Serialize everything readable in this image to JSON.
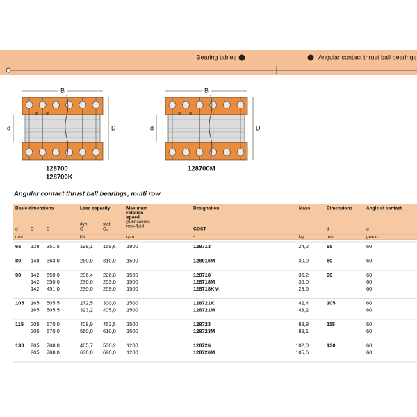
{
  "header": {
    "nav": [
      "Bearing tables",
      "Angular contact thrust ball bearings"
    ]
  },
  "figures": [
    {
      "labels": {
        "B": "B",
        "d": "d",
        "D": "D",
        "alpha": "α"
      },
      "designations": [
        "128700",
        "128700K"
      ]
    },
    {
      "labels": {
        "B": "B",
        "d": "d",
        "D": "D",
        "alpha": "α"
      },
      "designations": [
        "128700M"
      ]
    }
  ],
  "table": {
    "title": "Angular contact thrust ball bearings, multi row",
    "headers": {
      "basic": "Basic dimensions",
      "load": "Load capacity",
      "speed": [
        "Maximum",
        "rotation",
        "speed",
        "(lubrication)",
        "non-fluid"
      ],
      "designation": "Designation",
      "mass": "Mass",
      "dimensions": "Dimensions",
      "angle": "Angle of contact"
    },
    "sub": {
      "dyn": "dyn.",
      "dyn_symbol": "C",
      "stat": "stat.",
      "stat_symbol": "C₀"
    },
    "columns": {
      "d": "d",
      "D": "D",
      "B": "B",
      "gost": "GOST",
      "dim_d": "d",
      "alpha": "α"
    },
    "units": {
      "dims": "mm",
      "load": "kN",
      "speed": "rpm",
      "designation": "-",
      "mass": "kg",
      "dim": "mm",
      "angle": "grado"
    },
    "groups": [
      {
        "d": "65",
        "dim": "65",
        "rows": [
          [
            "128",
            "351,5",
            "199,1",
            "169,6",
            "1800",
            "128713",
            "24,2",
            "60"
          ]
        ]
      },
      {
        "d": "80",
        "dim": "80",
        "rows": [
          [
            "148",
            "363,0",
            "260,0",
            "310,0",
            "1500",
            "128916M",
            "30,0",
            "60"
          ]
        ]
      },
      {
        "d": "90",
        "dim": "90",
        "rows": [
          [
            "142",
            "550,0",
            "206,4",
            "226,8",
            "1500",
            "128718",
            "35,2",
            "60"
          ],
          [
            "142",
            "550,0",
            "230,0",
            "253,0",
            "1500",
            "128718M",
            "35,0",
            "60"
          ],
          [
            "142",
            "451,0",
            "230,0",
            "269,0",
            "1500",
            "128718KM",
            "29,6",
            "60"
          ]
        ]
      },
      {
        "d": "105",
        "dim": "105",
        "rows": [
          [
            "165",
            "505,5",
            "272,5",
            "300,0",
            "1500",
            "128721K",
            "42,4",
            "60"
          ],
          [
            "165",
            "505,5",
            "323,2",
            "405,0",
            "1500",
            "128721M",
            "43,2",
            "60"
          ]
        ]
      },
      {
        "d": "115",
        "dim": "115",
        "rows": [
          [
            "205",
            "570,0",
            "408,9",
            "453,5",
            "1500",
            "128723",
            "88,8",
            "60"
          ],
          [
            "205",
            "570,0",
            "560,0",
            "610,0",
            "1500",
            "128723M",
            "89,1",
            "60"
          ]
        ]
      },
      {
        "d": "130",
        "dim": "130",
        "rows": [
          [
            "205",
            "788,0",
            "465,7",
            "530,2",
            "1200",
            "128726",
            "102,0",
            "60"
          ],
          [
            "205",
            "788,0",
            "630,0",
            "690,0",
            "1200",
            "128726M",
            "105,6",
            "60"
          ]
        ]
      }
    ]
  }
}
